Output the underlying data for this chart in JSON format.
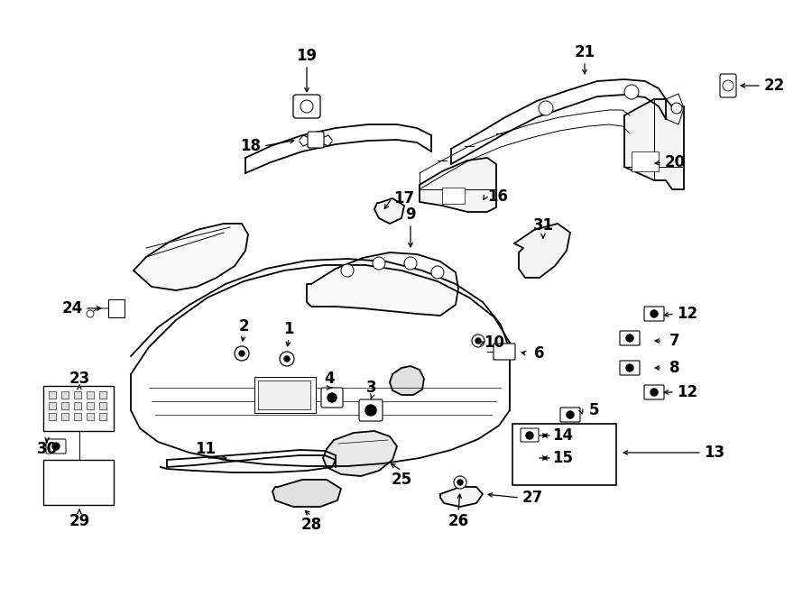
{
  "bg_color": "#ffffff",
  "lc": "#000000",
  "lw": 1.3,
  "lw_thin": 0.7,
  "fs": 12,
  "fw": "bold",
  "figw": 9.0,
  "figh": 6.61,
  "dpi": 100
}
